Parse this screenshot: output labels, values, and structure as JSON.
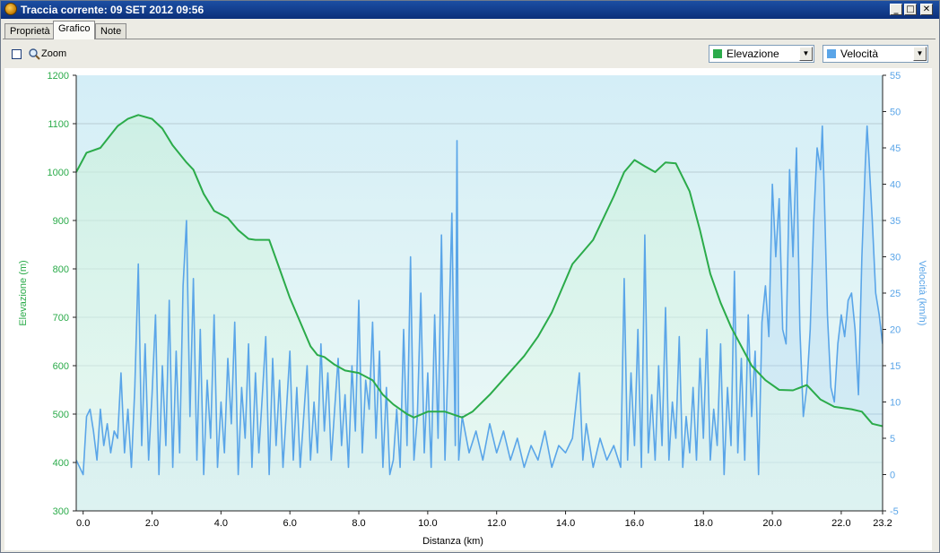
{
  "window": {
    "title": "Traccia corrente: 09 SET 2012 09:56"
  },
  "tabs": [
    {
      "label": "Proprietà",
      "active": false
    },
    {
      "label": "Grafico",
      "active": true
    },
    {
      "label": "Note",
      "active": false
    }
  ],
  "toolbar": {
    "zoom_label": "Zoom",
    "zoom_checked": false,
    "series1_select": {
      "value": "Elevazione",
      "color": "#2bab4a"
    },
    "series2_select": {
      "value": "Velocità",
      "color": "#5aa5e8"
    }
  },
  "chart_data": {
    "type": "line",
    "xlabel": "Distanza  (km)",
    "ylabel_left": "Elevazione (m)",
    "ylabel_right": "Velocità (km/h)",
    "xlim": [
      -0.2,
      23.2
    ],
    "ylim_left": [
      300,
      1200
    ],
    "ylim_right": [
      -5,
      55
    ],
    "x_ticks": [
      "0.0",
      "2.0",
      "4.0",
      "6.0",
      "8.0",
      "10.0",
      "12.0",
      "14.0",
      "16.0",
      "18.0",
      "20.0",
      "22.0",
      "23.2"
    ],
    "x_tick_values": [
      0,
      2,
      4,
      6,
      8,
      10,
      12,
      14,
      16,
      18,
      20,
      22,
      23.2
    ],
    "y_left_ticks": [
      "1200",
      "1100",
      "1000",
      "900",
      "800",
      "700",
      "600",
      "500",
      "400",
      "300"
    ],
    "y_right_ticks": [
      "55",
      "50",
      "45",
      "40",
      "35",
      "30",
      "25",
      "20",
      "15",
      "10",
      "5",
      "0",
      "-5"
    ],
    "grid": true,
    "series": [
      {
        "name": "Elevazione",
        "color": "#2bab4a",
        "axis": "left",
        "points": [
          [
            -0.2,
            1000
          ],
          [
            0.1,
            1040
          ],
          [
            0.5,
            1050
          ],
          [
            1.0,
            1095
          ],
          [
            1.3,
            1110
          ],
          [
            1.6,
            1118
          ],
          [
            2.0,
            1110
          ],
          [
            2.3,
            1090
          ],
          [
            2.6,
            1055
          ],
          [
            3.0,
            1020
          ],
          [
            3.2,
            1005
          ],
          [
            3.5,
            955
          ],
          [
            3.8,
            920
          ],
          [
            4.2,
            905
          ],
          [
            4.5,
            880
          ],
          [
            4.8,
            862
          ],
          [
            5.0,
            860
          ],
          [
            5.2,
            860
          ],
          [
            5.4,
            860
          ],
          [
            5.7,
            800
          ],
          [
            6.0,
            740
          ],
          [
            6.3,
            690
          ],
          [
            6.6,
            640
          ],
          [
            6.8,
            622
          ],
          [
            7.0,
            618
          ],
          [
            7.3,
            602
          ],
          [
            7.6,
            590
          ],
          [
            8.0,
            585
          ],
          [
            8.4,
            570
          ],
          [
            8.7,
            540
          ],
          [
            9.0,
            520
          ],
          [
            9.2,
            510
          ],
          [
            9.4,
            500
          ],
          [
            9.6,
            493
          ],
          [
            10.0,
            505
          ],
          [
            10.5,
            505
          ],
          [
            11.0,
            493
          ],
          [
            11.3,
            505
          ],
          [
            11.8,
            540
          ],
          [
            12.3,
            580
          ],
          [
            12.8,
            620
          ],
          [
            13.2,
            660
          ],
          [
            13.6,
            710
          ],
          [
            13.9,
            760
          ],
          [
            14.2,
            810
          ],
          [
            14.5,
            835
          ],
          [
            14.8,
            860
          ],
          [
            15.1,
            905
          ],
          [
            15.4,
            950
          ],
          [
            15.7,
            1000
          ],
          [
            16.0,
            1025
          ],
          [
            16.3,
            1012
          ],
          [
            16.6,
            1000
          ],
          [
            16.9,
            1020
          ],
          [
            17.2,
            1018
          ],
          [
            17.6,
            960
          ],
          [
            17.9,
            880
          ],
          [
            18.2,
            790
          ],
          [
            18.5,
            730
          ],
          [
            18.8,
            680
          ],
          [
            19.1,
            640
          ],
          [
            19.4,
            600
          ],
          [
            19.8,
            570
          ],
          [
            20.2,
            550
          ],
          [
            20.6,
            549
          ],
          [
            21.0,
            560
          ],
          [
            21.4,
            530
          ],
          [
            21.8,
            515
          ],
          [
            22.3,
            510
          ],
          [
            22.6,
            505
          ],
          [
            22.9,
            480
          ],
          [
            23.2,
            475
          ]
        ]
      },
      {
        "name": "Velocità",
        "color": "#5aa5e8",
        "axis": "right",
        "points": [
          [
            -0.2,
            2
          ],
          [
            0.0,
            0
          ],
          [
            0.1,
            8
          ],
          [
            0.2,
            9
          ],
          [
            0.3,
            6
          ],
          [
            0.4,
            2
          ],
          [
            0.5,
            9
          ],
          [
            0.6,
            4
          ],
          [
            0.7,
            7
          ],
          [
            0.8,
            3
          ],
          [
            0.9,
            6
          ],
          [
            1.0,
            5
          ],
          [
            1.1,
            14
          ],
          [
            1.2,
            3
          ],
          [
            1.3,
            9
          ],
          [
            1.4,
            1
          ],
          [
            1.5,
            12
          ],
          [
            1.6,
            29
          ],
          [
            1.7,
            4
          ],
          [
            1.8,
            18
          ],
          [
            1.9,
            2
          ],
          [
            2.0,
            11
          ],
          [
            2.1,
            22
          ],
          [
            2.2,
            0
          ],
          [
            2.3,
            15
          ],
          [
            2.4,
            4
          ],
          [
            2.5,
            24
          ],
          [
            2.6,
            1
          ],
          [
            2.7,
            17
          ],
          [
            2.8,
            3
          ],
          [
            2.9,
            26
          ],
          [
            3.0,
            35
          ],
          [
            3.1,
            8
          ],
          [
            3.2,
            27
          ],
          [
            3.3,
            2
          ],
          [
            3.4,
            20
          ],
          [
            3.5,
            0
          ],
          [
            3.6,
            13
          ],
          [
            3.7,
            5
          ],
          [
            3.8,
            22
          ],
          [
            3.9,
            1
          ],
          [
            4.0,
            10
          ],
          [
            4.1,
            3
          ],
          [
            4.2,
            16
          ],
          [
            4.3,
            7
          ],
          [
            4.4,
            21
          ],
          [
            4.5,
            0
          ],
          [
            4.6,
            12
          ],
          [
            4.7,
            5
          ],
          [
            4.8,
            18
          ],
          [
            4.9,
            1
          ],
          [
            5.0,
            14
          ],
          [
            5.1,
            3
          ],
          [
            5.2,
            11
          ],
          [
            5.3,
            19
          ],
          [
            5.4,
            0
          ],
          [
            5.5,
            16
          ],
          [
            5.6,
            4
          ],
          [
            5.7,
            13
          ],
          [
            5.8,
            1
          ],
          [
            5.9,
            9
          ],
          [
            6.0,
            17
          ],
          [
            6.1,
            2
          ],
          [
            6.2,
            12
          ],
          [
            6.3,
            1
          ],
          [
            6.4,
            8
          ],
          [
            6.5,
            15
          ],
          [
            6.6,
            2
          ],
          [
            6.7,
            10
          ],
          [
            6.8,
            3
          ],
          [
            6.9,
            18
          ],
          [
            7.0,
            6
          ],
          [
            7.1,
            14
          ],
          [
            7.2,
            2
          ],
          [
            7.3,
            9
          ],
          [
            7.4,
            16
          ],
          [
            7.5,
            4
          ],
          [
            7.6,
            11
          ],
          [
            7.7,
            1
          ],
          [
            7.8,
            15
          ],
          [
            7.9,
            6
          ],
          [
            8.0,
            24
          ],
          [
            8.1,
            3
          ],
          [
            8.2,
            13
          ],
          [
            8.3,
            9
          ],
          [
            8.4,
            21
          ],
          [
            8.5,
            5
          ],
          [
            8.6,
            17
          ],
          [
            8.7,
            1
          ],
          [
            8.8,
            12
          ],
          [
            8.9,
            0
          ],
          [
            9.0,
            2
          ],
          [
            9.1,
            9
          ],
          [
            9.2,
            1
          ],
          [
            9.3,
            20
          ],
          [
            9.4,
            4
          ],
          [
            9.5,
            30
          ],
          [
            9.6,
            2
          ],
          [
            9.7,
            8
          ],
          [
            9.8,
            25
          ],
          [
            9.9,
            3
          ],
          [
            10.0,
            14
          ],
          [
            10.1,
            1
          ],
          [
            10.2,
            22
          ],
          [
            10.3,
            5
          ],
          [
            10.4,
            33
          ],
          [
            10.5,
            2
          ],
          [
            10.6,
            17
          ],
          [
            10.7,
            36
          ],
          [
            10.8,
            4
          ],
          [
            10.85,
            46
          ],
          [
            10.9,
            2
          ],
          [
            11.0,
            8
          ],
          [
            11.2,
            3
          ],
          [
            11.4,
            6
          ],
          [
            11.6,
            2
          ],
          [
            11.8,
            7
          ],
          [
            12.0,
            3
          ],
          [
            12.2,
            6
          ],
          [
            12.4,
            2
          ],
          [
            12.6,
            5
          ],
          [
            12.8,
            1
          ],
          [
            13.0,
            4
          ],
          [
            13.2,
            2
          ],
          [
            13.4,
            6
          ],
          [
            13.6,
            1
          ],
          [
            13.8,
            4
          ],
          [
            14.0,
            3
          ],
          [
            14.2,
            5
          ],
          [
            14.4,
            14
          ],
          [
            14.5,
            2
          ],
          [
            14.6,
            7
          ],
          [
            14.8,
            1
          ],
          [
            15.0,
            5
          ],
          [
            15.2,
            2
          ],
          [
            15.4,
            4
          ],
          [
            15.6,
            1
          ],
          [
            15.7,
            27
          ],
          [
            15.8,
            2
          ],
          [
            15.9,
            14
          ],
          [
            16.0,
            4
          ],
          [
            16.1,
            20
          ],
          [
            16.2,
            1
          ],
          [
            16.3,
            33
          ],
          [
            16.4,
            3
          ],
          [
            16.5,
            11
          ],
          [
            16.6,
            2
          ],
          [
            16.7,
            15
          ],
          [
            16.8,
            4
          ],
          [
            16.9,
            23
          ],
          [
            17.0,
            2
          ],
          [
            17.1,
            10
          ],
          [
            17.2,
            5
          ],
          [
            17.3,
            19
          ],
          [
            17.4,
            1
          ],
          [
            17.5,
            8
          ],
          [
            17.6,
            3
          ],
          [
            17.7,
            12
          ],
          [
            17.8,
            2
          ],
          [
            17.9,
            16
          ],
          [
            18.0,
            5
          ],
          [
            18.1,
            20
          ],
          [
            18.2,
            2
          ],
          [
            18.3,
            9
          ],
          [
            18.4,
            4
          ],
          [
            18.5,
            18
          ],
          [
            18.6,
            0
          ],
          [
            18.7,
            12
          ],
          [
            18.8,
            4
          ],
          [
            18.9,
            28
          ],
          [
            19.0,
            3
          ],
          [
            19.1,
            16
          ],
          [
            19.2,
            2
          ],
          [
            19.3,
            22
          ],
          [
            19.4,
            8
          ],
          [
            19.5,
            17
          ],
          [
            19.6,
            0
          ],
          [
            19.7,
            21
          ],
          [
            19.8,
            26
          ],
          [
            19.9,
            19
          ],
          [
            20.0,
            40
          ],
          [
            20.1,
            30
          ],
          [
            20.2,
            38
          ],
          [
            20.3,
            20
          ],
          [
            20.4,
            18
          ],
          [
            20.5,
            42
          ],
          [
            20.6,
            30
          ],
          [
            20.7,
            45
          ],
          [
            20.8,
            20
          ],
          [
            20.9,
            8
          ],
          [
            21.0,
            12
          ],
          [
            21.1,
            20
          ],
          [
            21.2,
            35
          ],
          [
            21.3,
            45
          ],
          [
            21.4,
            42
          ],
          [
            21.45,
            48
          ],
          [
            21.5,
            40
          ],
          [
            21.6,
            22
          ],
          [
            21.7,
            12
          ],
          [
            21.8,
            10
          ],
          [
            21.9,
            18
          ],
          [
            22.0,
            22
          ],
          [
            22.1,
            19
          ],
          [
            22.2,
            24
          ],
          [
            22.3,
            25
          ],
          [
            22.4,
            20
          ],
          [
            22.5,
            11
          ],
          [
            22.6,
            30
          ],
          [
            22.7,
            43
          ],
          [
            22.75,
            48
          ],
          [
            22.8,
            44
          ],
          [
            22.9,
            35
          ],
          [
            23.0,
            25
          ],
          [
            23.1,
            22
          ],
          [
            23.2,
            18
          ]
        ]
      }
    ]
  }
}
